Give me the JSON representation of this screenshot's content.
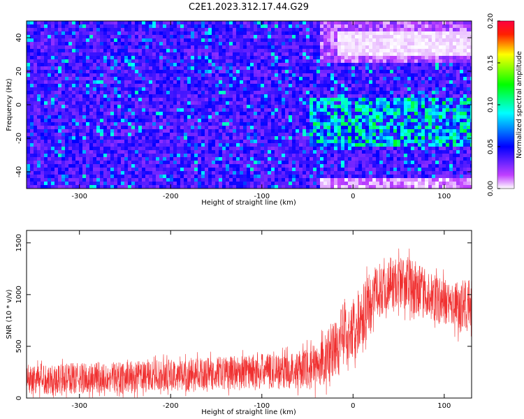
{
  "title": "C2E1.2023.312.17.44.G29",
  "chart_data": [
    {
      "type": "heatmap",
      "xlabel": "Height of straight line (km)",
      "ylabel": "Frequency (Hz)",
      "xlim": [
        -358,
        130
      ],
      "ylim": [
        -50,
        50
      ],
      "xticks": [
        -300,
        -200,
        -100,
        0,
        100
      ],
      "yticks": [
        -40,
        -20,
        0,
        20,
        40
      ],
      "colorbar": {
        "label": "Normalized spectral amplitude",
        "range": [
          0,
          0.2
        ],
        "ticks": [
          "0.00",
          "0.05",
          "0.10",
          "0.15",
          "0.20"
        ],
        "colormap": [
          "#ffffff",
          "#a000ff",
          "#0000ff",
          "#00ffff",
          "#00ff00",
          "#ffff00",
          "#ff0000"
        ]
      },
      "description_values": {
        "background_amplitude": 0.03,
        "bright_band": {
          "x_range": [
            -50,
            130
          ],
          "freq_range": [
            -25,
            5
          ],
          "amplitude": 0.09
        },
        "low_amplitude_region": {
          "x_range": [
            -40,
            130
          ],
          "freq_range": [
            25,
            50
          ],
          "amplitude": 0.005
        }
      }
    },
    {
      "type": "line",
      "xlabel": "Height of straight line (km)",
      "ylabel": "SNR (10 * v/v)",
      "xlim": [
        -358,
        130
      ],
      "ylim": [
        0,
        1620
      ],
      "xticks": [
        -300,
        -200,
        -100,
        0,
        100
      ],
      "yticks": [
        0,
        500,
        1000,
        1500
      ],
      "color": "#f03030",
      "series": [
        {
          "x": [
            -358,
            -300,
            -250,
            -200,
            -150,
            -100,
            -60,
            -40,
            -30,
            -20,
            -10,
            0,
            10,
            20,
            30,
            40,
            50,
            60,
            70,
            80,
            90,
            100,
            110,
            120,
            130
          ],
          "mean": [
            180,
            190,
            200,
            220,
            240,
            260,
            270,
            300,
            380,
            480,
            600,
            650,
            800,
            950,
            1050,
            1100,
            1120,
            1100,
            1050,
            1000,
            960,
            930,
            900,
            880,
            880
          ],
          "spread": [
            150,
            150,
            150,
            150,
            160,
            170,
            180,
            220,
            260,
            320,
            320,
            320,
            300,
            280,
            260,
            240,
            260,
            260,
            250,
            240,
            230,
            230,
            240,
            260,
            260
          ]
        }
      ]
    }
  ]
}
